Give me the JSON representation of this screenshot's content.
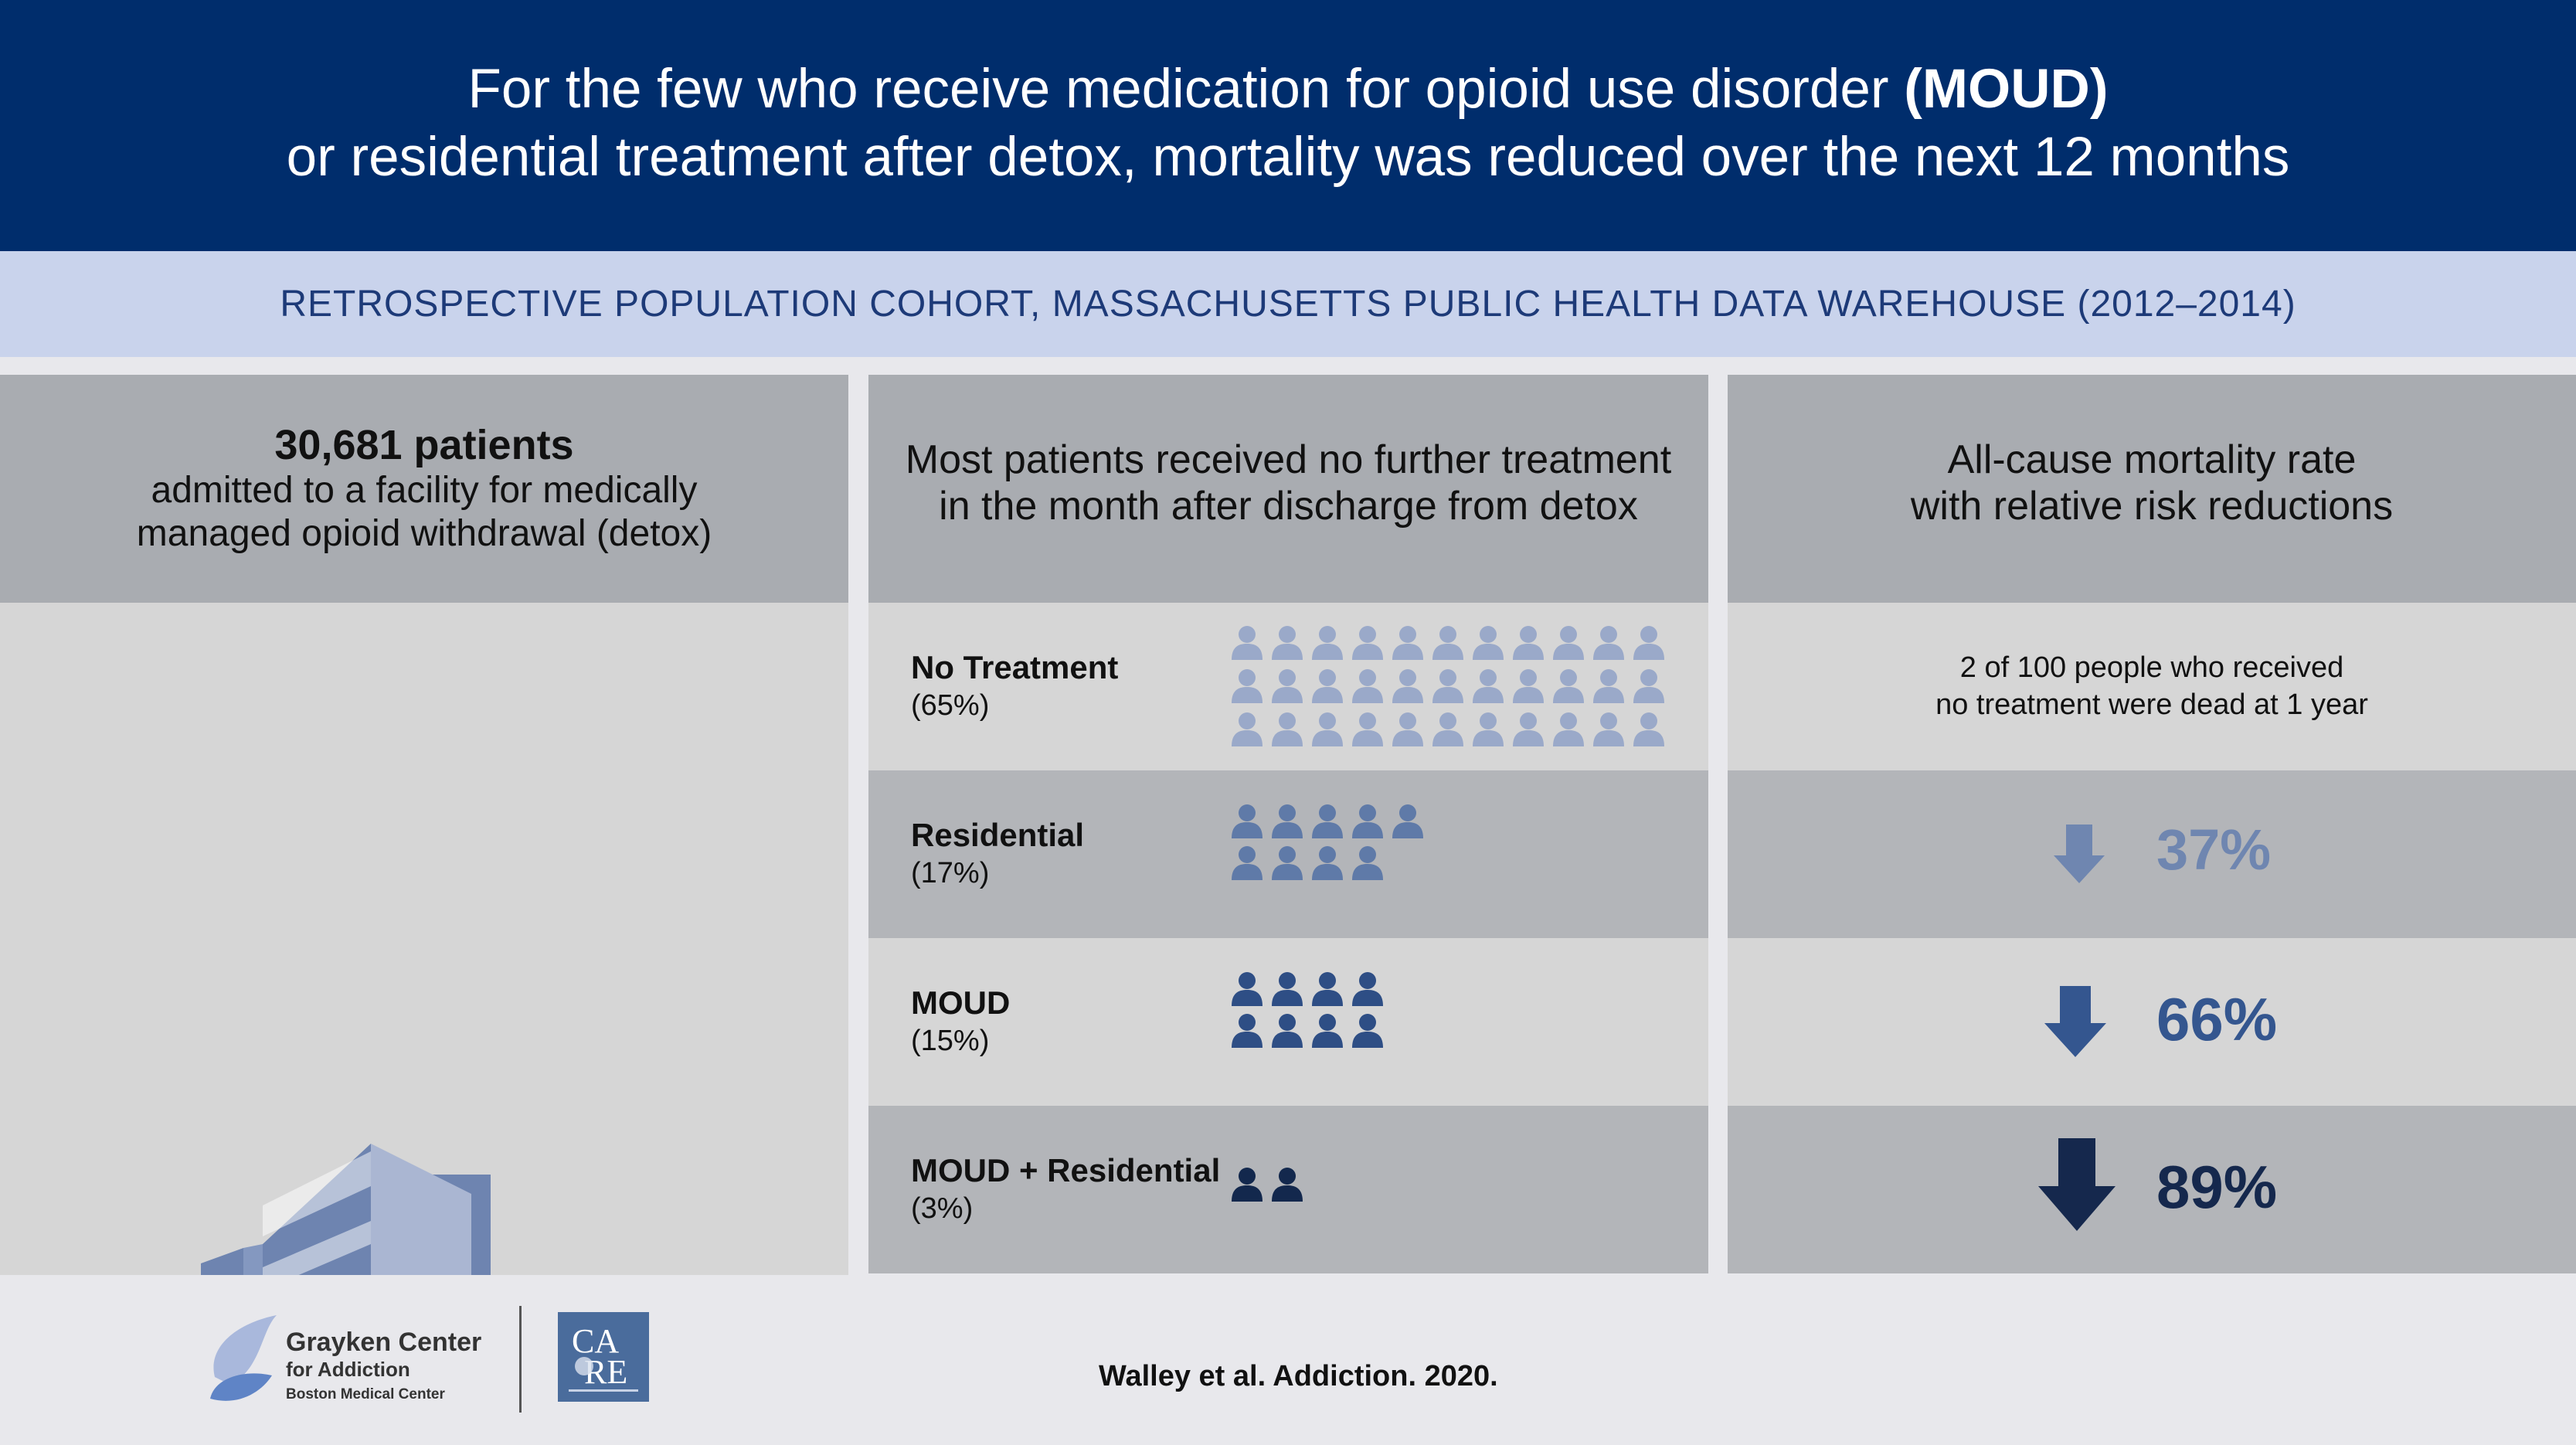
{
  "header": {
    "line1_prefix": "For the few who receive medication for opioid use disorder ",
    "line1_bold": "(MOUD)",
    "line2": "or residential treatment after detox, mortality was reduced over the next 12 months"
  },
  "subtitle": "RETROSPECTIVE POPULATION COHORT, MASSACHUSETTS PUBLIC HEALTH DATA WAREHOUSE (2012–2014)",
  "col1": {
    "count": "30,681 patients",
    "desc_line1": "admitted to a facility for medically",
    "desc_line2": "managed opioid withdrawal (detox)",
    "icon": "hospital-building-icon"
  },
  "col2": {
    "title_line1": "Most patients received no further treatment",
    "title_line2": "in the month after discharge from detox",
    "rows": [
      {
        "name": "No Treatment",
        "pct": "(65%)",
        "people": 33,
        "color": "#9aa9c9"
      },
      {
        "name": "Residential",
        "pct": "(17%)",
        "people": 9,
        "color": "#5f7aa8"
      },
      {
        "name": "MOUD",
        "pct": "(15%)",
        "people": 8,
        "color": "#2e4e85"
      },
      {
        "name": "MOUD + Residential",
        "pct": "(3%)",
        "people": 2,
        "color": "#13284d"
      }
    ]
  },
  "col3": {
    "title_line1": "All-cause mortality rate",
    "title_line2": "with relative risk reductions",
    "baseline_line1": "2 of 100 people who received",
    "baseline_line2": "no treatment were dead at 1 year",
    "reductions": [
      {
        "value": "37%",
        "color": "#6f86b0"
      },
      {
        "value": "66%",
        "color": "#34568f"
      },
      {
        "value": "89%",
        "color": "#15284d"
      }
    ]
  },
  "footer": {
    "org_name": "Grayken Center",
    "org_sub": "for Addiction",
    "org_parent": "Boston Medical Center",
    "care_logo_text": "CARE",
    "citation": "Walley et al. Addiction. 2020."
  }
}
